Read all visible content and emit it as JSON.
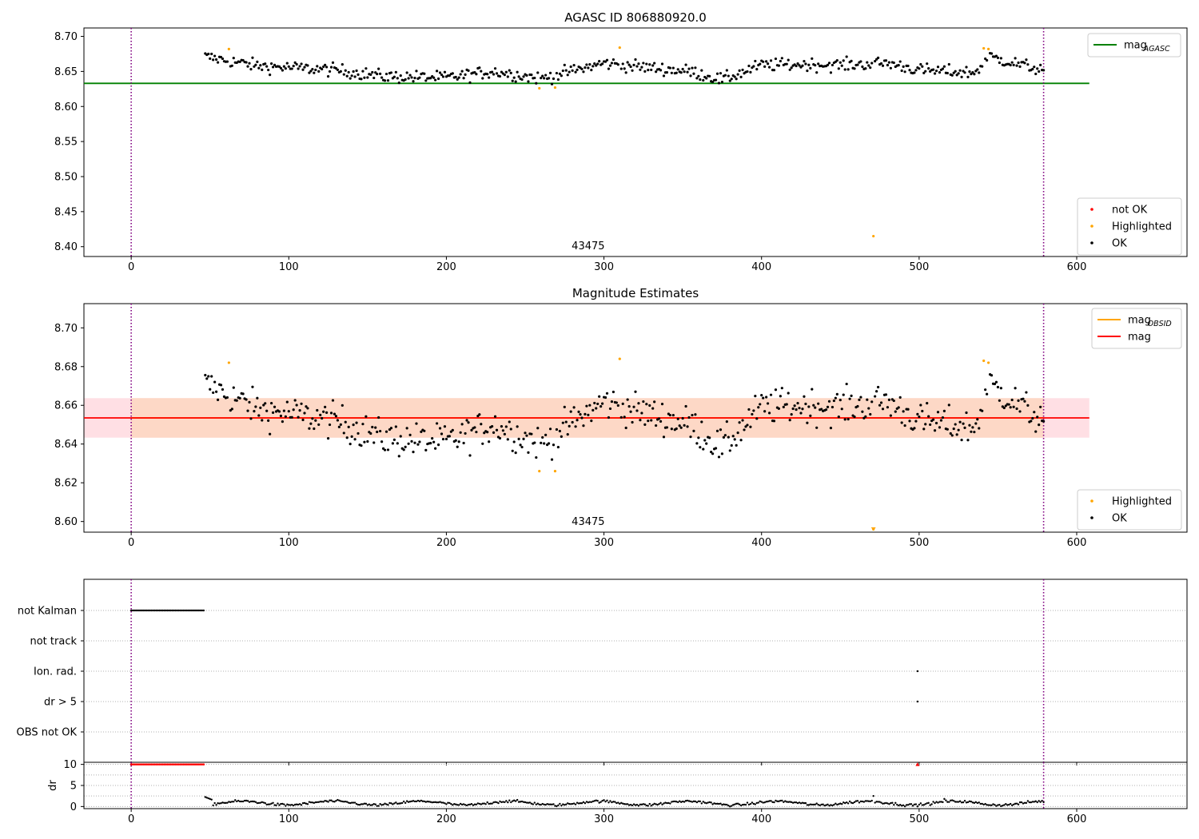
{
  "figure": {
    "title": "AGASC ID 806880920.0"
  },
  "chart_data": [
    {
      "type": "scatter",
      "title": "AGASC ID 806880920.0",
      "xlim": [
        -30,
        670
      ],
      "ylim": [
        8.386,
        8.712
      ],
      "xticks": [
        0,
        100,
        200,
        300,
        400,
        500,
        600
      ],
      "yticks": [
        8.4,
        8.45,
        8.5,
        8.55,
        8.6,
        8.65,
        8.7
      ],
      "ytick_labels": [
        "8.40",
        "8.45",
        "8.50",
        "8.55",
        "8.60",
        "8.65",
        "8.70"
      ],
      "obsid_label": {
        "text": "43475",
        "x": 290
      },
      "vlines": [
        0,
        579
      ],
      "hlines": [
        {
          "name": "mag_AGASC",
          "y": 8.633,
          "xmin": -30,
          "xmax": 608,
          "color": "#008000"
        }
      ],
      "legend_upper": {
        "placement": "top-right",
        "entries": [
          {
            "label": "mag",
            "sub": "AGASC",
            "color": "#008000"
          }
        ]
      },
      "legend_lower": {
        "placement": "bottom-right",
        "entries": [
          {
            "label": "not OK",
            "color": "#ff0000"
          },
          {
            "label": "Highlighted",
            "color": "#ffa500"
          },
          {
            "label": "OK",
            "color": "#000000"
          }
        ]
      },
      "highlighted": [
        [
          62,
          8.682
        ],
        [
          259,
          8.626
        ],
        [
          269,
          8.627
        ],
        [
          310,
          8.684
        ],
        [
          471,
          8.415
        ],
        [
          541,
          8.683
        ],
        [
          544,
          8.682
        ]
      ]
    },
    {
      "type": "scatter",
      "title": "Magnitude Estimates",
      "xlim": [
        -30,
        670
      ],
      "ylim": [
        8.5945,
        8.7125
      ],
      "xticks": [
        0,
        100,
        200,
        300,
        400,
        500,
        600
      ],
      "yticks": [
        8.6,
        8.62,
        8.64,
        8.66,
        8.68,
        8.7
      ],
      "ytick_labels": [
        "8.60",
        "8.62",
        "8.64",
        "8.66",
        "8.68",
        "8.70"
      ],
      "obsid_label": {
        "text": "43475",
        "x": 290
      },
      "vlines": [
        0,
        579
      ],
      "band_outer": {
        "xmin": -30,
        "xmax": 608,
        "ymin": 8.6433,
        "ymax": 8.6637,
        "color": "#ffdfe4"
      },
      "band_inner": {
        "xmin": 0,
        "xmax": 579,
        "ymin": 8.6433,
        "ymax": 8.6637,
        "color": "#fdd8c6"
      },
      "hlines": [
        {
          "name": "mag",
          "y": 8.6535,
          "xmin": -30,
          "xmax": 608,
          "color": "#ff0000"
        },
        {
          "name": "mag_OBSID",
          "y": 8.6535,
          "xmin": 0,
          "xmax": 579,
          "color": "#ffa500"
        }
      ],
      "legend_upper": {
        "placement": "top-right",
        "entries": [
          {
            "label": "mag",
            "sub": "OBSID",
            "color": "#ffa500"
          },
          {
            "label": "mag",
            "sub": "",
            "color": "#ff0000"
          }
        ]
      },
      "legend_lower": {
        "placement": "bottom-right",
        "entries": [
          {
            "label": "Highlighted",
            "color": "#ffa500"
          },
          {
            "label": "OK",
            "color": "#000000"
          }
        ]
      },
      "highlighted": [
        [
          62,
          8.682
        ],
        [
          259,
          8.626
        ],
        [
          269,
          8.626
        ],
        [
          310,
          8.684
        ],
        [
          471,
          8.596
        ],
        [
          541,
          8.683
        ],
        [
          544,
          8.682
        ]
      ],
      "offscale_marker": {
        "x": 471,
        "y": 8.5955,
        "color": "#ffa500"
      }
    },
    {
      "type": "scatter",
      "title": "",
      "xlim": [
        -30,
        670
      ],
      "xticks": [
        0,
        100,
        200,
        300,
        400,
        500,
        600
      ],
      "categories": [
        "not Kalman",
        "not track",
        "Ion. rad.",
        "dr > 5",
        "OBS not OK"
      ],
      "vlines": [
        0,
        579
      ],
      "flags": [
        {
          "category": "not Kalman",
          "x_ranges": [
            [
              0,
              46
            ]
          ]
        },
        {
          "category": "not track",
          "x_ranges": []
        },
        {
          "category": "Ion. rad.",
          "points": [
            499
          ]
        },
        {
          "category": "dr > 5",
          "points": [
            499
          ]
        },
        {
          "category": "OBS not OK",
          "x_ranges": []
        }
      ]
    },
    {
      "type": "scatter",
      "title": "",
      "ylabel": "dr",
      "xlim": [
        -30,
        670
      ],
      "ylim": [
        -0.5,
        10.5
      ],
      "xticks": [
        0,
        100,
        200,
        300,
        400,
        500,
        600
      ],
      "xtick_labels": [
        "0",
        "100",
        "200",
        "300",
        "400",
        "500",
        "600"
      ],
      "yticks": [
        0,
        5,
        10
      ],
      "ytick_labels": [
        "0",
        "5",
        "10"
      ],
      "grid_y": [
        0,
        2.5,
        5,
        7.5,
        10
      ],
      "vlines": [
        0,
        579
      ],
      "capped": {
        "x_range": [
          0,
          46
        ],
        "y": 10,
        "color": "#ff0000"
      },
      "capped_points": [
        {
          "x": 499,
          "y": 10,
          "color": "#ff0000"
        }
      ],
      "ok_points": {
        "x_range": [
          47,
          579
        ],
        "typical_y": 0.8,
        "min": 0,
        "max": 2.5
      }
    }
  ]
}
